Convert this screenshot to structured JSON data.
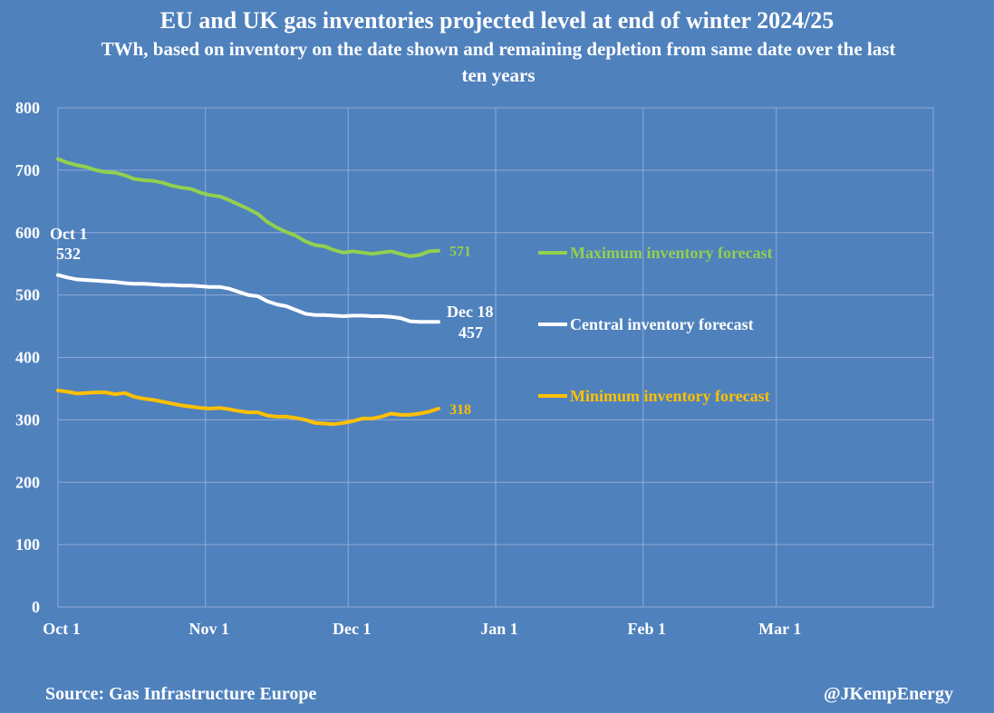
{
  "title": "EU and UK gas inventories projected level at end of winter 2024/25",
  "subtitle": "TWh, based on inventory on the date shown and remaining depletion from same date over the last ten years",
  "source": "Source: Gas Infrastructure Europe",
  "handle": "@JKempEnergy",
  "chart_data": {
    "type": "line",
    "ylim": [
      0,
      800
    ],
    "yticks": [
      0,
      100,
      200,
      300,
      400,
      500,
      600,
      700,
      800
    ],
    "x_start": "Oct 1",
    "x_end_day": 184,
    "xticks": [
      {
        "label": "Oct 1",
        "day": 0
      },
      {
        "label": "Nov 1",
        "day": 31
      },
      {
        "label": "Dec 1",
        "day": 61
      },
      {
        "label": "Jan 1",
        "day": 92
      },
      {
        "label": "Feb 1",
        "day": 123
      },
      {
        "label": "Mar 1",
        "day": 151
      }
    ],
    "grid": true,
    "series": [
      {
        "name": "Maximum inventory forecast",
        "color": "#92d050",
        "end_label": "571",
        "points": [
          [
            0,
            718
          ],
          [
            2,
            712
          ],
          [
            4,
            708
          ],
          [
            6,
            705
          ],
          [
            8,
            700
          ],
          [
            10,
            697
          ],
          [
            12,
            696
          ],
          [
            14,
            692
          ],
          [
            16,
            686
          ],
          [
            18,
            684
          ],
          [
            20,
            683
          ],
          [
            22,
            680
          ],
          [
            24,
            675
          ],
          [
            26,
            672
          ],
          [
            28,
            670
          ],
          [
            30,
            664
          ],
          [
            32,
            660
          ],
          [
            34,
            658
          ],
          [
            36,
            652
          ],
          [
            38,
            645
          ],
          [
            40,
            638
          ],
          [
            42,
            630
          ],
          [
            44,
            617
          ],
          [
            46,
            608
          ],
          [
            48,
            601
          ],
          [
            50,
            595
          ],
          [
            52,
            586
          ],
          [
            54,
            580
          ],
          [
            56,
            578
          ],
          [
            58,
            572
          ],
          [
            60,
            568
          ],
          [
            62,
            570
          ],
          [
            64,
            568
          ],
          [
            66,
            566
          ],
          [
            68,
            568
          ],
          [
            70,
            570
          ],
          [
            72,
            566
          ],
          [
            74,
            562
          ],
          [
            76,
            564
          ],
          [
            78,
            570
          ],
          [
            80,
            571
          ]
        ]
      },
      {
        "name": "Central inventory forecast",
        "color": "#ffffff",
        "start_label": [
          "Oct 1",
          "532"
        ],
        "end_label": [
          "Dec 18",
          "457"
        ],
        "points": [
          [
            0,
            532
          ],
          [
            2,
            528
          ],
          [
            4,
            525
          ],
          [
            6,
            524
          ],
          [
            8,
            523
          ],
          [
            10,
            522
          ],
          [
            12,
            521
          ],
          [
            14,
            519
          ],
          [
            16,
            518
          ],
          [
            18,
            518
          ],
          [
            20,
            517
          ],
          [
            22,
            516
          ],
          [
            24,
            516
          ],
          [
            26,
            515
          ],
          [
            28,
            515
          ],
          [
            30,
            514
          ],
          [
            32,
            513
          ],
          [
            34,
            513
          ],
          [
            36,
            510
          ],
          [
            38,
            505
          ],
          [
            40,
            500
          ],
          [
            42,
            498
          ],
          [
            44,
            490
          ],
          [
            46,
            485
          ],
          [
            48,
            482
          ],
          [
            50,
            476
          ],
          [
            52,
            470
          ],
          [
            54,
            468
          ],
          [
            56,
            468
          ],
          [
            58,
            467
          ],
          [
            60,
            466
          ],
          [
            62,
            467
          ],
          [
            64,
            467
          ],
          [
            66,
            466
          ],
          [
            68,
            466
          ],
          [
            70,
            465
          ],
          [
            72,
            463
          ],
          [
            74,
            458
          ],
          [
            76,
            457
          ],
          [
            78,
            457
          ],
          [
            80,
            457
          ]
        ]
      },
      {
        "name": "Minimum inventory forecast",
        "color": "#ffc000",
        "end_label": "318",
        "points": [
          [
            0,
            347
          ],
          [
            2,
            345
          ],
          [
            4,
            342
          ],
          [
            6,
            343
          ],
          [
            8,
            344
          ],
          [
            10,
            344
          ],
          [
            12,
            341
          ],
          [
            14,
            343
          ],
          [
            16,
            337
          ],
          [
            18,
            334
          ],
          [
            20,
            332
          ],
          [
            22,
            329
          ],
          [
            24,
            326
          ],
          [
            26,
            323
          ],
          [
            28,
            321
          ],
          [
            30,
            319
          ],
          [
            32,
            318
          ],
          [
            34,
            319
          ],
          [
            36,
            317
          ],
          [
            38,
            314
          ],
          [
            40,
            312
          ],
          [
            42,
            312
          ],
          [
            44,
            307
          ],
          [
            46,
            305
          ],
          [
            48,
            305
          ],
          [
            50,
            303
          ],
          [
            52,
            300
          ],
          [
            54,
            295
          ],
          [
            56,
            294
          ],
          [
            58,
            293
          ],
          [
            60,
            295
          ],
          [
            62,
            298
          ],
          [
            64,
            302
          ],
          [
            66,
            302
          ],
          [
            68,
            305
          ],
          [
            70,
            310
          ],
          [
            72,
            308
          ],
          [
            74,
            308
          ],
          [
            76,
            310
          ],
          [
            78,
            313
          ],
          [
            80,
            318
          ]
        ]
      }
    ]
  }
}
